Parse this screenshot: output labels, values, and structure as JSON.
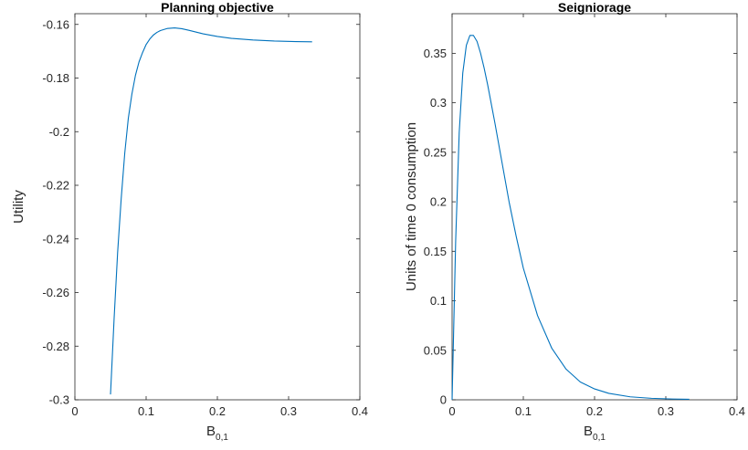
{
  "chart_data": [
    {
      "type": "line",
      "title": "Planning objective",
      "xlabel": "B",
      "xlabel_sub": "0,1",
      "ylabel": "Utility",
      "xlim": [
        0,
        0.4
      ],
      "ylim": [
        -0.3,
        -0.156
      ],
      "xticks": [
        "0",
        "0.1",
        "0.2",
        "0.3",
        "0.4"
      ],
      "yticks": [
        "-0.3",
        "-0.28",
        "-0.26",
        "-0.24",
        "-0.22",
        "-0.2",
        "-0.18",
        "-0.16"
      ],
      "grid": false,
      "line_color": "#0072BD",
      "series": [
        {
          "x": [
            0.05,
            0.055,
            0.06,
            0.065,
            0.07,
            0.075,
            0.08,
            0.085,
            0.09,
            0.095,
            0.1,
            0.105,
            0.11,
            0.115,
            0.12,
            0.13,
            0.14,
            0.15,
            0.16,
            0.18,
            0.2,
            0.22,
            0.25,
            0.28,
            0.31,
            0.333
          ],
          "y": [
            -0.298,
            -0.27,
            -0.245,
            -0.225,
            -0.208,
            -0.195,
            -0.186,
            -0.179,
            -0.174,
            -0.1705,
            -0.1675,
            -0.1655,
            -0.164,
            -0.163,
            -0.1623,
            -0.1615,
            -0.1613,
            -0.1616,
            -0.1622,
            -0.1635,
            -0.1645,
            -0.1652,
            -0.1658,
            -0.1662,
            -0.1664,
            -0.1665
          ]
        }
      ]
    },
    {
      "type": "line",
      "title": "Seigniorage",
      "xlabel": "B",
      "xlabel_sub": "0,1",
      "ylabel": "Units of time 0 consumption",
      "xlim": [
        0,
        0.4
      ],
      "ylim": [
        0,
        0.39
      ],
      "xticks": [
        "0",
        "0.1",
        "0.2",
        "0.3",
        "0.4"
      ],
      "yticks": [
        "0",
        "0.05",
        "0.1",
        "0.15",
        "0.2",
        "0.25",
        "0.3",
        "0.35"
      ],
      "grid": false,
      "line_color": "#0072BD",
      "series": [
        {
          "x": [
            0,
            0.005,
            0.01,
            0.015,
            0.02,
            0.025,
            0.03,
            0.035,
            0.04,
            0.045,
            0.05,
            0.06,
            0.07,
            0.08,
            0.09,
            0.1,
            0.12,
            0.14,
            0.16,
            0.18,
            0.2,
            0.22,
            0.25,
            0.28,
            0.31,
            0.333
          ],
          "y": [
            0,
            0.16,
            0.27,
            0.33,
            0.358,
            0.368,
            0.368,
            0.362,
            0.35,
            0.335,
            0.318,
            0.28,
            0.24,
            0.2,
            0.165,
            0.133,
            0.085,
            0.052,
            0.031,
            0.018,
            0.011,
            0.0065,
            0.003,
            0.0015,
            0.0008,
            0.0005
          ]
        }
      ]
    }
  ]
}
